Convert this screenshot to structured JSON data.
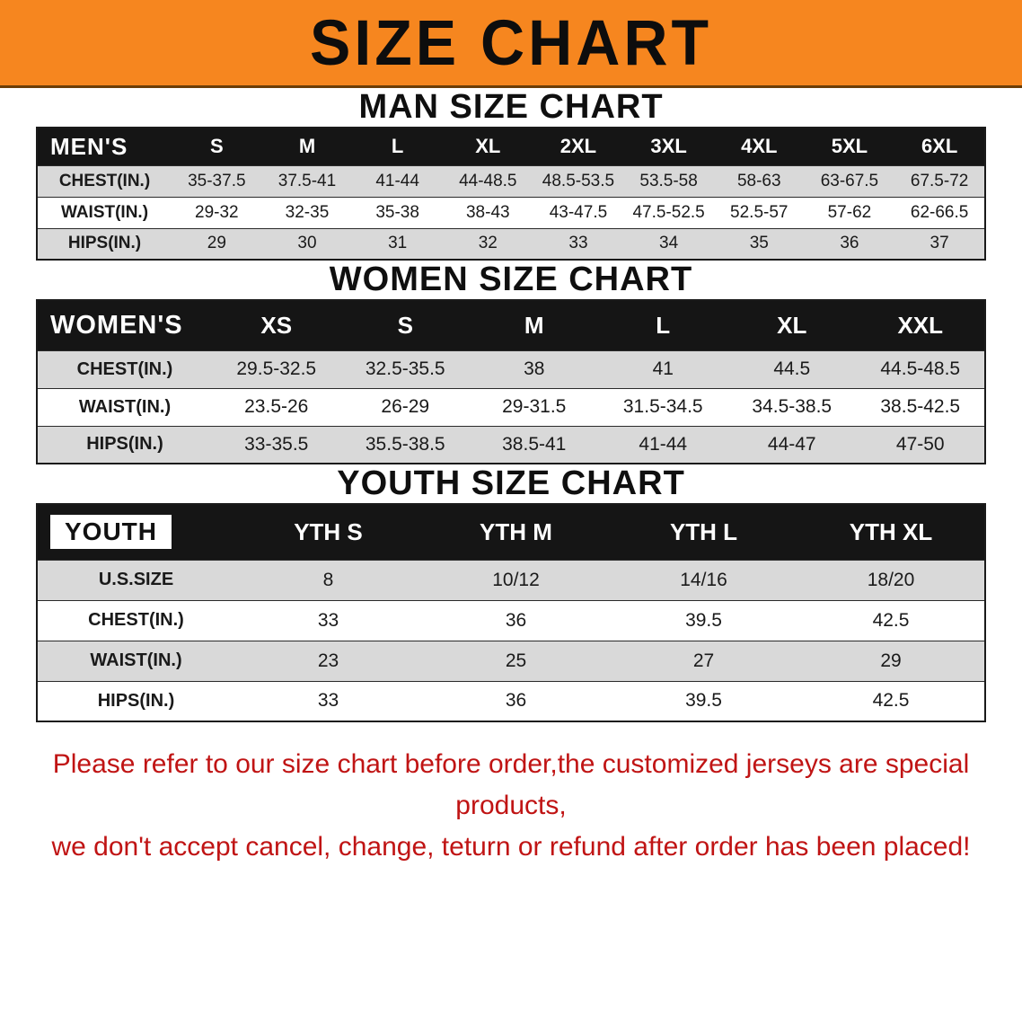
{
  "banner": {
    "title": "SIZE CHART"
  },
  "sections": [
    {
      "heading": "MAN SIZE CHART",
      "table": {
        "header": [
          "MEN'S",
          "S",
          "M",
          "L",
          "XL",
          "2XL",
          "3XL",
          "4XL",
          "5XL",
          "6XL"
        ],
        "rows": [
          [
            "CHEST(IN.)",
            "35-37.5",
            "37.5-41",
            "41-44",
            "44-48.5",
            "48.5-53.5",
            "53.5-58",
            "58-63",
            "63-67.5",
            "67.5-72"
          ],
          [
            "WAIST(IN.)",
            "29-32",
            "32-35",
            "35-38",
            "38-43",
            "43-47.5",
            "47.5-52.5",
            "52.5-57",
            "57-62",
            "62-66.5"
          ],
          [
            "HIPS(IN.)",
            "29",
            "30",
            "31",
            "32",
            "33",
            "34",
            "35",
            "36",
            "37"
          ]
        ]
      }
    },
    {
      "heading": "WOMEN SIZE CHART",
      "table": {
        "header": [
          "WOMEN'S",
          "XS",
          "S",
          "M",
          "L",
          "XL",
          "XXL"
        ],
        "rows": [
          [
            "CHEST(IN.)",
            "29.5-32.5",
            "32.5-35.5",
            "38",
            "41",
            "44.5",
            "44.5-48.5"
          ],
          [
            "WAIST(IN.)",
            "23.5-26",
            "26-29",
            "29-31.5",
            "31.5-34.5",
            "34.5-38.5",
            "38.5-42.5"
          ],
          [
            "HIPS(IN.)",
            "33-35.5",
            "35.5-38.5",
            "38.5-41",
            "41-44",
            "44-47",
            "47-50"
          ]
        ]
      }
    },
    {
      "heading": "YOUTH SIZE CHART",
      "table": {
        "header": [
          "YOUTH",
          "YTH S",
          "YTH M",
          "YTH L",
          "YTH XL"
        ],
        "rows": [
          [
            "U.S.SIZE",
            "8",
            "10/12",
            "14/16",
            "18/20"
          ],
          [
            "CHEST(IN.)",
            "33",
            "36",
            "39.5",
            "42.5"
          ],
          [
            "WAIST(IN.)",
            "23",
            "25",
            "27",
            "29"
          ],
          [
            "HIPS(IN.)",
            "33",
            "36",
            "39.5",
            "42.5"
          ]
        ]
      }
    }
  ],
  "footer": {
    "line1": "Please refer to our size chart before order,the customized jerseys are special products,",
    "line2": "we don't accept cancel, change, teturn or refund after order has been placed!"
  },
  "colors": {
    "banner_bg": "#f6861f",
    "table_header_bg": "#151515",
    "row_shade": "#d9d9d9",
    "footer_text": "#c01414"
  }
}
